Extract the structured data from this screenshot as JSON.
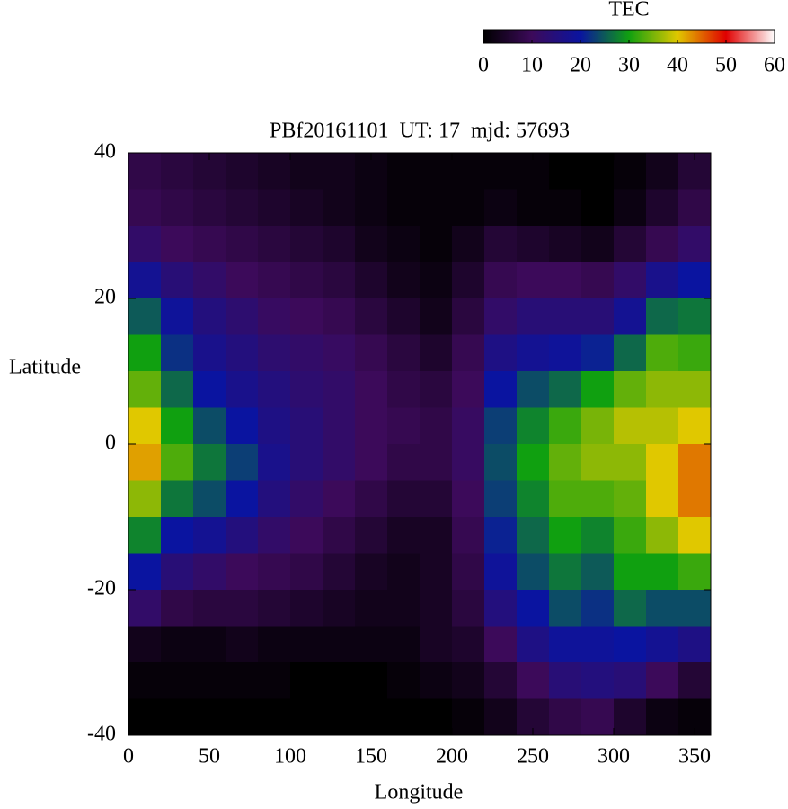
{
  "chart_data": {
    "type": "heatmap",
    "title": "PBf20161101  UT: 17  mjd: 57693",
    "x_label": "Longitude",
    "y_label": "Latitude",
    "x": [
      10,
      30,
      50,
      70,
      90,
      110,
      130,
      150,
      170,
      190,
      210,
      230,
      250,
      270,
      290,
      310,
      330,
      350
    ],
    "y": [
      37.5,
      32.5,
      27.5,
      22.5,
      17.5,
      12.5,
      7.5,
      2.5,
      -2.5,
      -7.5,
      -12.5,
      -17.5,
      -22.5,
      -27.5,
      -32.5,
      -37.5
    ],
    "z": [
      [
        8,
        7,
        6,
        5,
        4,
        3,
        3,
        2,
        1,
        1,
        1,
        1,
        1,
        0,
        0,
        1,
        3,
        6
      ],
      [
        9,
        8,
        7,
        6,
        5,
        4,
        3,
        2,
        1,
        1,
        1,
        2,
        1,
        1,
        0,
        2,
        5,
        8
      ],
      [
        12,
        10,
        9,
        8,
        7,
        6,
        5,
        3,
        2,
        1,
        3,
        6,
        5,
        4,
        3,
        6,
        9,
        12
      ],
      [
        18,
        14,
        12,
        10,
        9,
        8,
        7,
        5,
        3,
        2,
        5,
        9,
        10,
        10,
        9,
        12,
        17,
        20
      ],
      [
        25,
        19,
        15,
        13,
        11,
        10,
        9,
        7,
        5,
        3,
        7,
        12,
        14,
        14,
        14,
        18,
        26,
        27
      ],
      [
        30,
        22,
        17,
        15,
        13,
        12,
        11,
        9,
        7,
        5,
        9,
        16,
        18,
        19,
        21,
        26,
        33,
        32
      ],
      [
        34,
        26,
        20,
        17,
        15,
        13,
        12,
        10,
        8,
        7,
        10,
        20,
        24,
        26,
        30,
        34,
        36,
        36
      ],
      [
        40,
        30,
        24,
        20,
        16,
        14,
        12,
        10,
        9,
        8,
        11,
        23,
        28,
        32,
        35,
        38,
        38,
        40
      ],
      [
        42,
        33,
        27,
        23,
        17,
        14,
        12,
        10,
        8,
        8,
        11,
        24,
        30,
        34,
        36,
        36,
        40,
        44
      ],
      [
        36,
        27,
        24,
        20,
        15,
        12,
        10,
        8,
        6,
        6,
        10,
        23,
        28,
        33,
        33,
        34,
        40,
        44
      ],
      [
        28,
        20,
        18,
        15,
        12,
        10,
        8,
        6,
        4,
        4,
        9,
        21,
        26,
        30,
        28,
        32,
        36,
        40
      ],
      [
        20,
        14,
        12,
        10,
        9,
        8,
        6,
        4,
        3,
        4,
        8,
        19,
        24,
        27,
        25,
        30,
        30,
        32
      ],
      [
        12,
        8,
        7,
        7,
        6,
        5,
        4,
        3,
        3,
        4,
        7,
        15,
        20,
        24,
        22,
        26,
        24,
        24
      ],
      [
        3,
        2,
        2,
        3,
        2,
        2,
        2,
        2,
        2,
        4,
        5,
        10,
        16,
        19,
        19,
        20,
        18,
        16
      ],
      [
        1,
        1,
        1,
        1,
        1,
        0,
        0,
        0,
        1,
        2,
        3,
        6,
        10,
        14,
        15,
        14,
        10,
        6
      ],
      [
        0,
        0,
        0,
        0,
        0,
        0,
        0,
        0,
        0,
        0,
        1,
        3,
        6,
        8,
        9,
        5,
        2,
        1
      ]
    ],
    "xlim": [
      0,
      360
    ],
    "xticks": [
      0,
      50,
      100,
      150,
      200,
      250,
      300,
      350
    ],
    "ylim": [
      -40,
      40
    ],
    "yticks": [
      -40,
      -20,
      0,
      20,
      40
    ],
    "colorbar_title": "TEC",
    "zlim": [
      0,
      60
    ],
    "zticks": [
      0,
      10,
      20,
      30,
      40,
      50,
      60
    ],
    "colorscale": [
      "#000000",
      "#3c0a5a",
      "#0a14a0",
      "#10a010",
      "#e0c800",
      "#e00000",
      "#ffffff"
    ]
  }
}
